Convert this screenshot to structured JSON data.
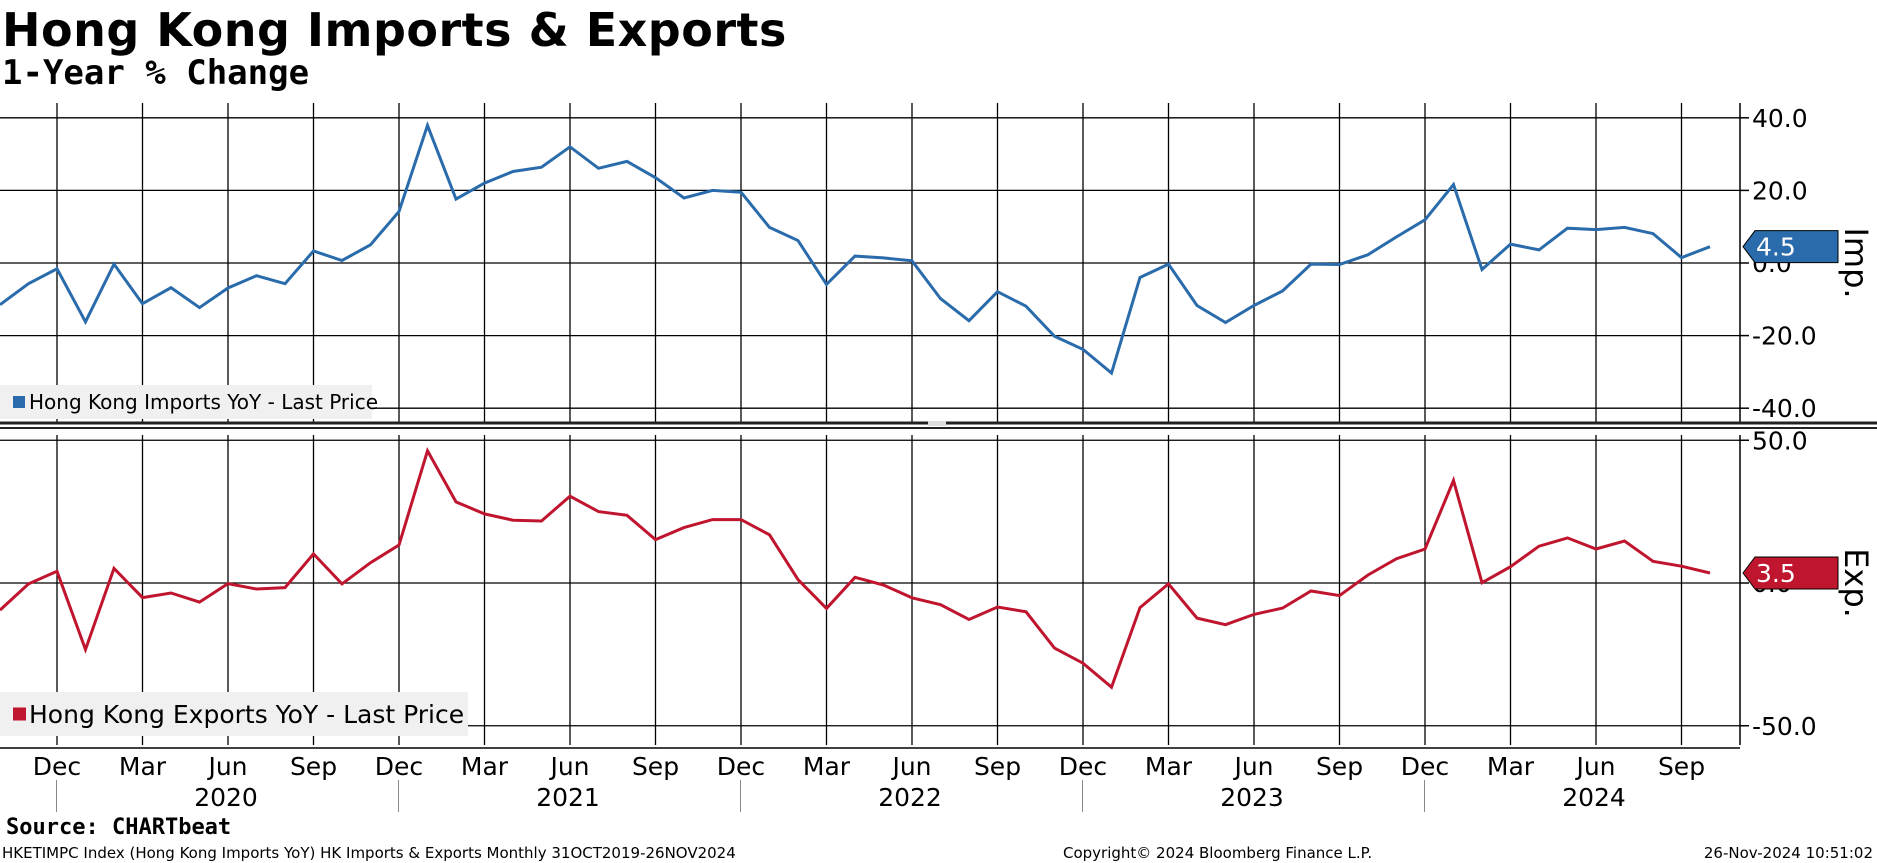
{
  "title": "Hong Kong Imports & Exports",
  "subtitle": "1-Year % Change",
  "source_label": "Source:",
  "source_value": "CHARTbeat",
  "footer": {
    "left": "HKETIMPC Index (Hong Kong Imports YoY) HK Imports & Exports  Monthly 31OCT2019-26NOV2024",
    "center": "Copyright© 2024 Bloomberg Finance L.P.",
    "right": "26-Nov-2024 10:51:02"
  },
  "colors": {
    "imports": "#2a6bab",
    "exports": "#c0152e"
  },
  "chart_data": [
    {
      "type": "line",
      "series": [
        {
          "name": "Hong Kong Imports YoY - Last Price",
          "values": [
            -11.5,
            -5.7,
            -1.6,
            -16.2,
            -0.3,
            -11.2,
            -6.8,
            -12.3,
            -6.9,
            -3.5,
            -5.7,
            3.3,
            0.7,
            5.0,
            14.2,
            37.9,
            17.6,
            22.0,
            25.2,
            26.4,
            32.0,
            26.1,
            28.0,
            23.5,
            17.9,
            20.0,
            19.5,
            9.8,
            6.2,
            -5.9,
            1.9,
            1.4,
            0.6,
            -9.8,
            -15.9,
            -7.9,
            -11.9,
            -20.2,
            -23.8,
            -30.3,
            -4.0,
            -0.3,
            -11.7,
            -16.4,
            -11.7,
            -7.7,
            -0.3,
            -0.4,
            2.3,
            7.2,
            11.9,
            21.6,
            -1.8,
            5.2,
            3.6,
            9.6,
            9.2,
            9.8,
            8.1,
            1.5,
            4.5
          ]
        }
      ],
      "x_tick_labels": [
        "Dec",
        "Mar",
        "Jun",
        "Sep",
        "Dec",
        "Mar",
        "Jun",
        "Sep",
        "Dec",
        "Mar",
        "Jun",
        "Sep",
        "Dec",
        "Mar",
        "Jun",
        "Sep",
        "Dec",
        "Mar",
        "Jun",
        "Sep"
      ],
      "year_labels": [
        "2020",
        "2021",
        "2022",
        "2023",
        "2024"
      ],
      "y_ticks": [
        "40.0",
        "20.0",
        "0.0",
        "-20.0",
        "-40.0"
      ],
      "ylim": [
        -40,
        40
      ],
      "ylabel": "Imp.",
      "last_value_label": "4.5",
      "legend": "Hong Kong Imports YoY - Last Price",
      "legend_position": "bottom-left",
      "grid": true
    },
    {
      "type": "line",
      "series": [
        {
          "name": "Hong Kong Exports YoY - Last Price",
          "values": [
            -9.5,
            -0.3,
            4.1,
            -23.3,
            5.1,
            -5.1,
            -3.5,
            -6.7,
            -0.2,
            -2.1,
            -1.6,
            10.2,
            -0.3,
            7.1,
            13.3,
            46.3,
            28.4,
            24.2,
            22.0,
            21.7,
            30.4,
            25.0,
            23.7,
            15.2,
            19.4,
            22.2,
            22.2,
            16.9,
            1.2,
            -8.9,
            2.0,
            -0.7,
            -5.2,
            -7.6,
            -12.8,
            -8.4,
            -10.1,
            -22.8,
            -28.1,
            -36.5,
            -8.6,
            -0.3,
            -12.3,
            -14.6,
            -11.0,
            -8.8,
            -2.8,
            -4.4,
            2.8,
            8.5,
            11.9,
            35.9,
            0.1,
            5.7,
            12.9,
            15.8,
            11.9,
            14.7,
            7.6,
            5.9,
            3.5
          ]
        }
      ],
      "y_ticks": [
        "50.0",
        "0.0",
        "-50.0"
      ],
      "ylim": [
        -50,
        50
      ],
      "ylabel": "Exp.",
      "last_value_label": "3.5",
      "legend": "Hong Kong Exports YoY - Last Price",
      "legend_position": "bottom-left",
      "grid": true
    }
  ]
}
